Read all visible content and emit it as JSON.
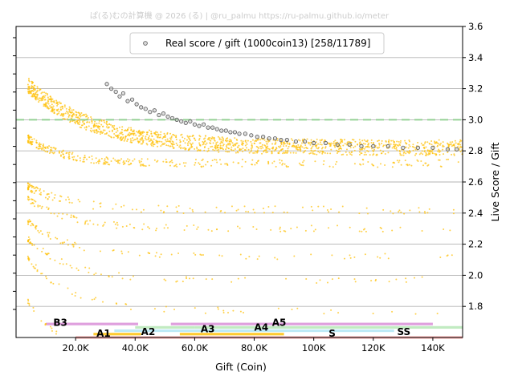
{
  "watermark": "ぱ(る)むの計算機 @ 2026 (る) | @ru_palmu  https://ru-palmu.github.io/meter",
  "colors": {
    "points": "#ffc20e",
    "real_fill": "#b0b0b0",
    "real_edge": "#555555",
    "reference_line": "#8fd18f",
    "grid": "#b3b3b3",
    "axis": "#000000",
    "watermark": "#cccccc"
  },
  "chart_data": {
    "type": "scatter",
    "title": "",
    "xlabel": "Gift (Coin)",
    "ylabel": "Live Score / Gift",
    "xlim": [
      0,
      150000
    ],
    "ylim": [
      1.6,
      3.6
    ],
    "x_ticks": [
      20000,
      40000,
      60000,
      80000,
      100000,
      120000,
      140000
    ],
    "x_tick_labels": [
      "20.0K",
      "40.0K",
      "60.0K",
      "80.0K",
      "100K",
      "120K",
      "140K"
    ],
    "y_ticks": [
      1.8,
      2.0,
      2.2,
      2.4,
      2.6,
      2.8,
      3.0,
      3.2,
      3.4,
      3.6
    ],
    "y_tick_labels": [
      "1.8",
      "2.0",
      "2.2",
      "2.4",
      "2.6",
      "2.8",
      "3.0",
      "3.2",
      "3.4",
      "3.6"
    ],
    "y_axis_side": "right",
    "grid": "horizontal",
    "legend": {
      "placement": "top-center",
      "entries": [
        {
          "label": "Real score / gift (1000coin13) [258/11789]",
          "marker": "circle"
        }
      ]
    },
    "reference_line": {
      "y": 3.0,
      "style": "dashed"
    },
    "bands": [
      {
        "name": "main",
        "y0": 3.28,
        "slope": 0.55,
        "x_from": 4000,
        "spread": 0.06
      },
      {
        "name": "tier-2",
        "y0": 2.92,
        "slope": 0.5,
        "x_from": 4000,
        "spread": 0.03
      },
      {
        "name": "tier-3",
        "y0": 2.62,
        "slope": 0.8,
        "x_from": 4000,
        "spread": 0.025
      },
      {
        "name": "tier-4",
        "y0": 2.55,
        "slope": 1.0,
        "x_from": 4000,
        "spread": 0.02
      },
      {
        "name": "tier-5",
        "y0": 2.42,
        "slope": 1.2,
        "x_from": 4000,
        "spread": 0.02
      },
      {
        "name": "tier-6",
        "y0": 2.32,
        "slope": 1.4,
        "x_from": 4000,
        "spread": 0.02
      },
      {
        "name": "tier-7",
        "y0": 2.22,
        "slope": 1.8,
        "x_from": 4000,
        "spread": 0.02
      },
      {
        "name": "tier-8",
        "y0": 1.97,
        "slope": 2.2,
        "x_from": 4000,
        "spread": 0.02
      }
    ],
    "real_points": [
      [
        30500,
        3.23
      ],
      [
        32000,
        3.2
      ],
      [
        33500,
        3.18
      ],
      [
        34800,
        3.15
      ],
      [
        36000,
        3.17
      ],
      [
        37500,
        3.12
      ],
      [
        39000,
        3.13
      ],
      [
        40500,
        3.1
      ],
      [
        42000,
        3.08
      ],
      [
        43500,
        3.07
      ],
      [
        45000,
        3.05
      ],
      [
        46500,
        3.06
      ],
      [
        48000,
        3.03
      ],
      [
        49500,
        3.04
      ],
      [
        51000,
        3.02
      ],
      [
        52500,
        3.01
      ],
      [
        54000,
        3.0
      ],
      [
        55500,
        2.99
      ],
      [
        57000,
        2.98
      ],
      [
        58500,
        2.99
      ],
      [
        60000,
        2.97
      ],
      [
        61500,
        2.96
      ],
      [
        63000,
        2.97
      ],
      [
        64500,
        2.95
      ],
      [
        66000,
        2.95
      ],
      [
        67500,
        2.94
      ],
      [
        69000,
        2.93
      ],
      [
        70500,
        2.93
      ],
      [
        72000,
        2.92
      ],
      [
        73500,
        2.92
      ],
      [
        75000,
        2.91
      ],
      [
        77000,
        2.91
      ],
      [
        79000,
        2.9
      ],
      [
        81000,
        2.89
      ],
      [
        83000,
        2.89
      ],
      [
        85000,
        2.88
      ],
      [
        87000,
        2.88
      ],
      [
        89000,
        2.87
      ],
      [
        91000,
        2.87
      ],
      [
        94000,
        2.86
      ],
      [
        97000,
        2.86
      ],
      [
        100000,
        2.85
      ],
      [
        104000,
        2.85
      ],
      [
        108000,
        2.84
      ],
      [
        112000,
        2.84
      ],
      [
        116000,
        2.83
      ],
      [
        120000,
        2.83
      ],
      [
        125000,
        2.83
      ],
      [
        130000,
        2.82
      ],
      [
        135000,
        2.82
      ],
      [
        140000,
        2.82
      ],
      [
        145000,
        2.81
      ],
      [
        148000,
        2.81
      ]
    ],
    "rank_bands": [
      {
        "label": "B3",
        "color": "#d98fd8",
        "x0": 10000,
        "x1": 41000,
        "row": 0
      },
      {
        "label": "A5",
        "color": "#d98fd8",
        "x0": 52000,
        "x1": 140000,
        "row": 0
      },
      {
        "label": "",
        "color": "#b6e8b6",
        "x0": 40000,
        "x1": 60000,
        "row": 1
      },
      {
        "label": "A4",
        "color": "#b6e8b6",
        "x0": 60000,
        "x1": 150000,
        "row": 1
      },
      {
        "label": "A2",
        "color": "#b3e6f5",
        "x0": 33000,
        "x1": 85000,
        "row": 2
      },
      {
        "label": "S",
        "color": "#b3e6f5",
        "x0": 85000,
        "x1": 127000,
        "row": 2
      },
      {
        "label": "A1",
        "color": "#ffc20e",
        "x0": 26000,
        "x1": 42000,
        "row": 3
      },
      {
        "label": "A3",
        "color": "#ffc20e",
        "x0": 55000,
        "x1": 90000,
        "row": 3
      },
      {
        "label": "",
        "color": "#f5a3a3",
        "x0": 20000,
        "x1": 60000,
        "row": 4
      },
      {
        "label": "SS",
        "color": "#f5a3a3",
        "x0": 60000,
        "x1": 150000,
        "row": 4
      }
    ],
    "rank_labels": [
      {
        "text": "B3",
        "x": 12500,
        "y": 1.695
      },
      {
        "text": "A1",
        "x": 27000,
        "y": 1.625
      },
      {
        "text": "A2",
        "x": 42000,
        "y": 1.635
      },
      {
        "text": "A3",
        "x": 62000,
        "y": 1.655
      },
      {
        "text": "A4",
        "x": 80000,
        "y": 1.665
      },
      {
        "text": "A5",
        "x": 86000,
        "y": 1.695
      },
      {
        "text": "S",
        "x": 105000,
        "y": 1.625
      },
      {
        "text": "SS",
        "x": 128000,
        "y": 1.635
      }
    ]
  }
}
